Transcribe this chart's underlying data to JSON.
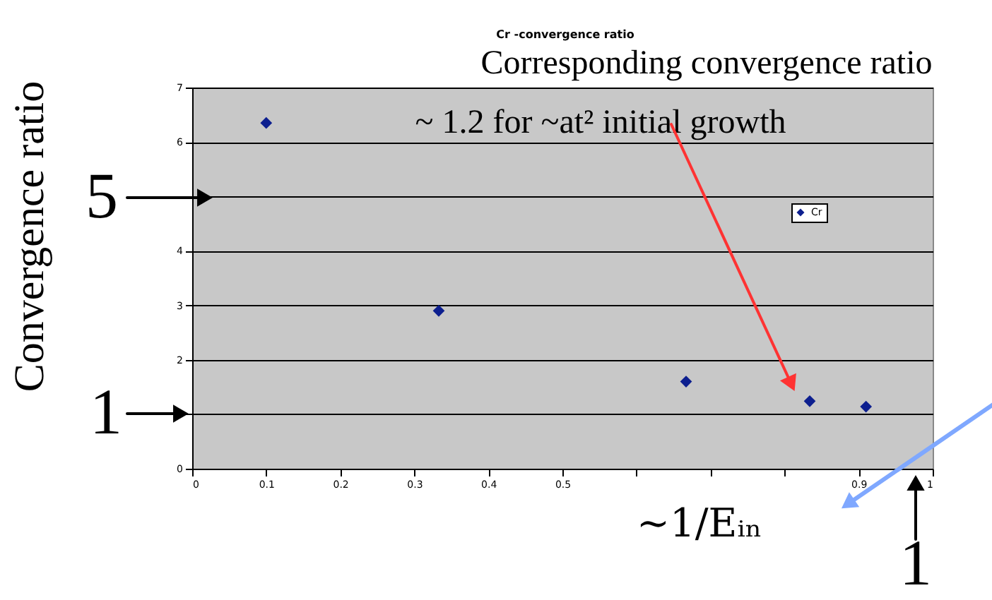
{
  "chart_data": {
    "type": "scatter",
    "title": "Cr -convergence ratio",
    "xlabel": "~1/Eᵢₙ",
    "ylabel": "Convergence ratio",
    "x": [
      0.1,
      0.333,
      0.667,
      0.834,
      0.91
    ],
    "series": [
      {
        "name": "Cr",
        "color": "#0d1f8f",
        "values": [
          6.35,
          2.9,
          1.6,
          1.24,
          1.14
        ]
      }
    ],
    "xlim": [
      0,
      1
    ],
    "ylim": [
      0,
      7
    ],
    "xticks": [
      0,
      0.1,
      0.2,
      0.3,
      0.4,
      0.5,
      {
        "value": 0.6,
        "label": null
      },
      {
        "value": 0.7,
        "label": null
      },
      {
        "value": 0.8,
        "label": null
      },
      0.9,
      1
    ],
    "yticks": [
      0,
      {
        "value": 1,
        "label": null
      },
      2,
      3,
      4,
      {
        "value": 5,
        "label": null
      },
      6,
      7
    ],
    "grid": "y",
    "legend": "top right",
    "marker": "diamond",
    "annotations": [
      "Corresponding convergence ratio",
      "~ 1.2 for ~at² initial growth",
      "5",
      "1",
      "1"
    ]
  }
}
